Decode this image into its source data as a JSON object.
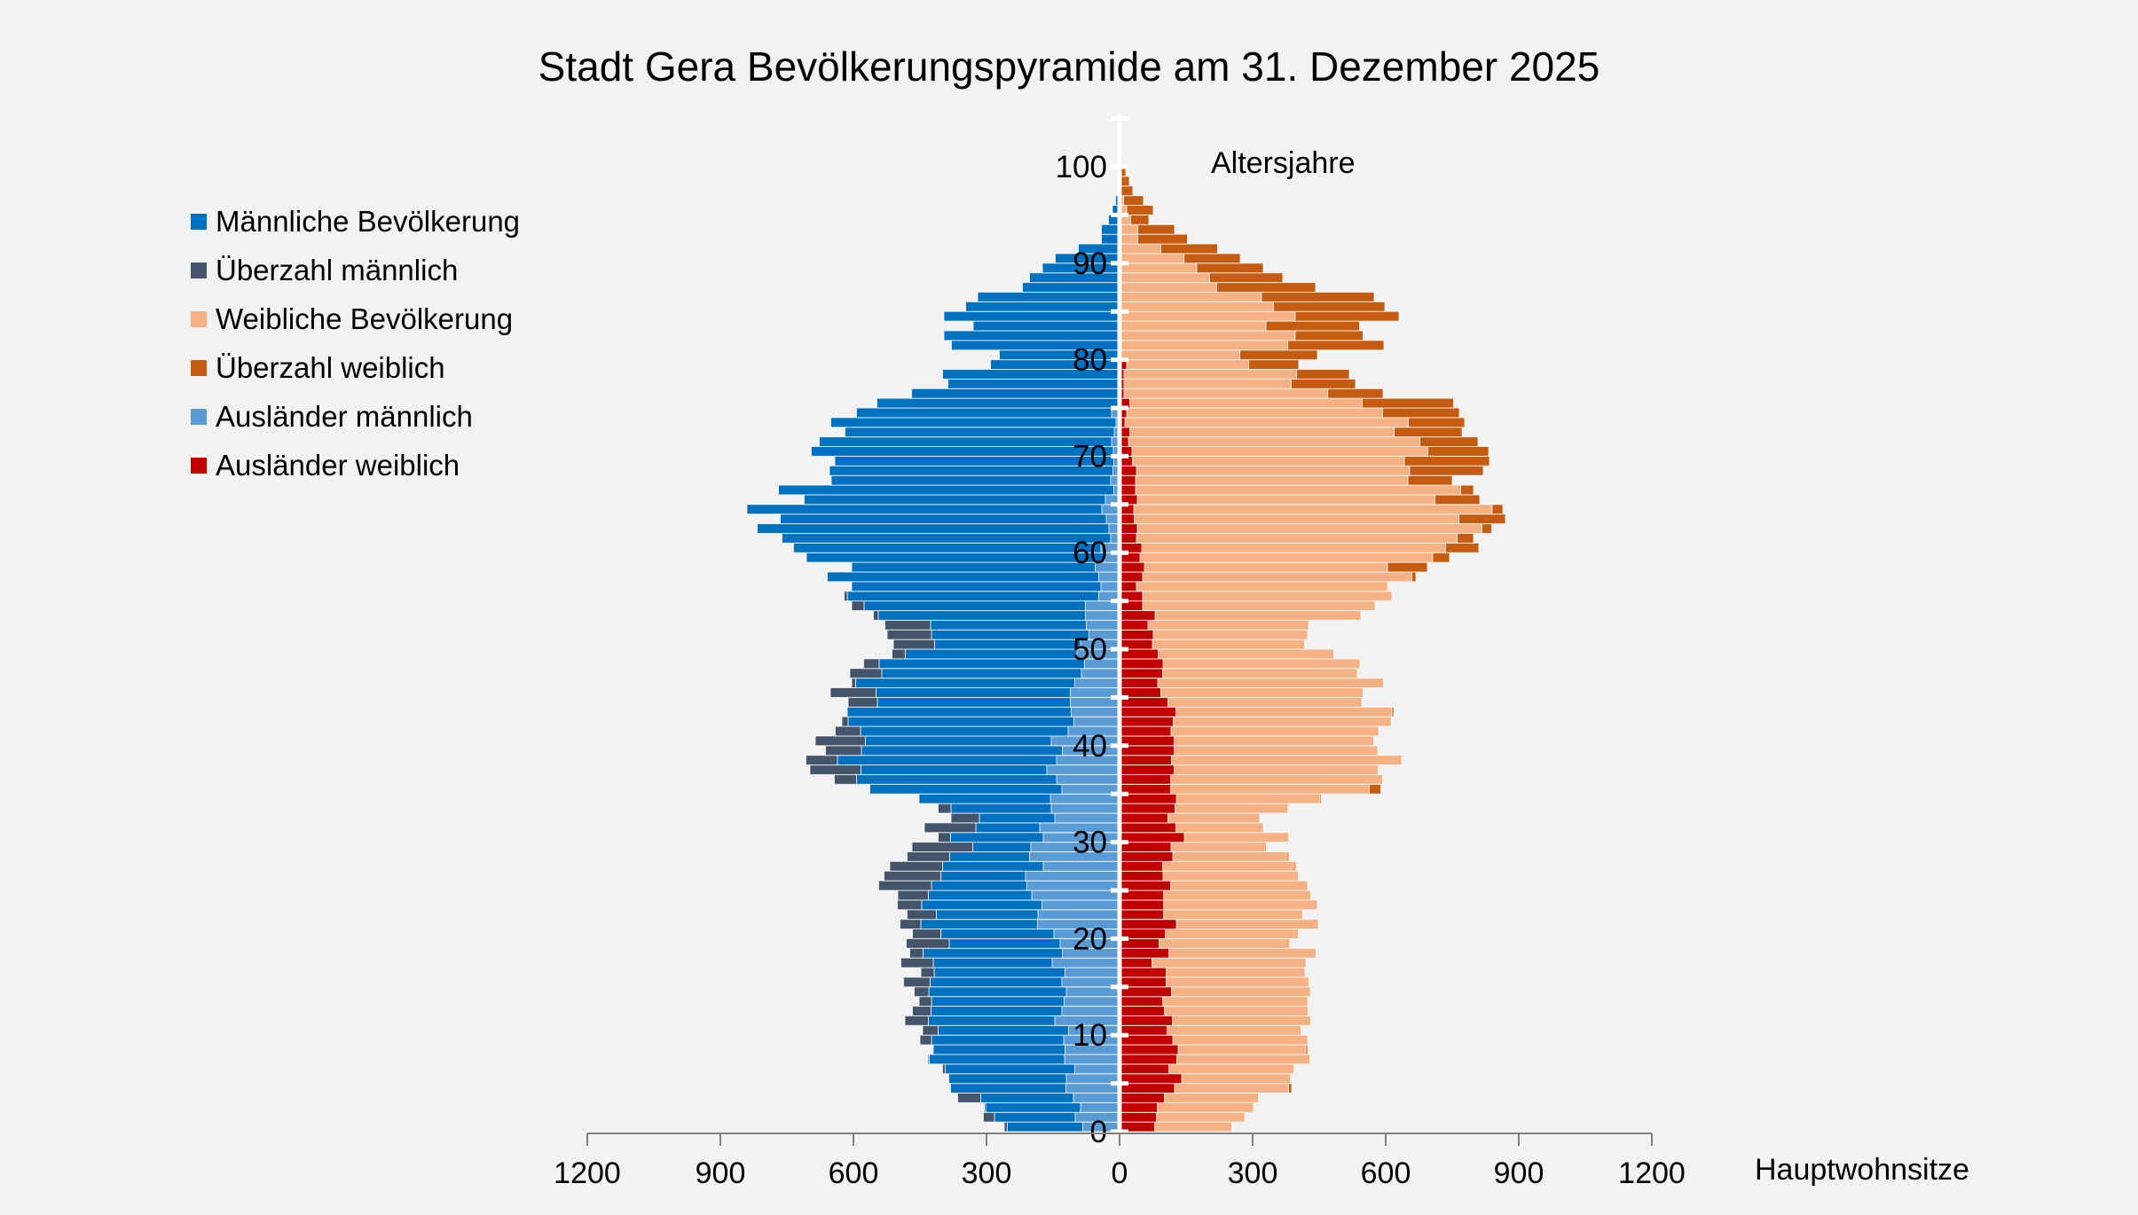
{
  "chart_data": {
    "type": "bar",
    "orientation": "horizontal-pyramid",
    "title": "Stadt Gera Bevölkerungspyramide am 31. Dezember 2025",
    "ylabel": "Altersjahre",
    "xlabel": "Hauptwohnsitze",
    "xlim": [
      -1200,
      1200
    ],
    "ylim": [
      0,
      105
    ],
    "x_tick_labels": [
      "1200",
      "900",
      "600",
      "300",
      "0",
      "300",
      "600",
      "900",
      "1200"
    ],
    "x_tick_values": [
      -1200,
      -900,
      -600,
      -300,
      0,
      300,
      600,
      900,
      1200
    ],
    "y_tick_labels": [
      "0",
      "10",
      "20",
      "30",
      "40",
      "50",
      "60",
      "70",
      "80",
      "90",
      "100"
    ],
    "y_tick_values": [
      0,
      10,
      20,
      30,
      40,
      50,
      60,
      70,
      80,
      90,
      100
    ],
    "legend_position": "top-left",
    "legend": [
      {
        "label": "Männliche Bevölkerung",
        "color": "#0070c0"
      },
      {
        "label": "Überzahl männlich",
        "color": "#44546a"
      },
      {
        "label": "Weibliche Bevölkerung",
        "color": "#f4b183"
      },
      {
        "label": "Überzahl weiblich",
        "color": "#c55a11"
      },
      {
        "label": "Ausländer männlich",
        "color": "#5b9bd5"
      },
      {
        "label": "Ausländer weiblich",
        "color": "#c00000"
      }
    ],
    "ages": [
      0,
      1,
      2,
      3,
      4,
      5,
      6,
      7,
      8,
      9,
      10,
      11,
      12,
      13,
      14,
      15,
      16,
      17,
      18,
      19,
      20,
      21,
      22,
      23,
      24,
      25,
      26,
      27,
      28,
      29,
      30,
      31,
      32,
      33,
      34,
      35,
      36,
      37,
      38,
      39,
      40,
      41,
      42,
      43,
      44,
      45,
      46,
      47,
      48,
      49,
      50,
      51,
      52,
      53,
      54,
      55,
      56,
      57,
      58,
      59,
      60,
      61,
      62,
      63,
      64,
      65,
      66,
      67,
      68,
      69,
      70,
      71,
      72,
      73,
      74,
      75,
      76,
      77,
      78,
      79,
      80,
      81,
      82,
      83,
      84,
      85,
      86,
      87,
      88,
      89,
      90,
      91,
      92,
      93,
      94,
      95,
      96,
      97,
      98,
      99,
      100
    ],
    "series": [
      {
        "name": "Männliche Bevölkerung",
        "values": [
          260,
          307,
          305,
          365,
          381,
          385,
          399,
          432,
          420,
          450,
          444,
          484,
          467,
          452,
          463,
          487,
          448,
          493,
          473,
          481,
          467,
          495,
          479,
          501,
          500,
          543,
          531,
          518,
          479,
          468,
          409,
          440,
          380,
          409,
          452,
          563,
          643,
          698,
          707,
          663,
          686,
          641,
          626,
          614,
          612,
          652,
          604,
          608,
          577,
          513,
          510,
          524,
          529,
          555,
          604,
          621,
          604,
          659,
          604,
          706,
          735,
          761,
          817,
          765,
          840,
          711,
          769,
          650,
          654,
          642,
          695,
          677,
          619,
          651,
          593,
          547,
          469,
          387,
          399,
          291,
          271,
          379,
          396,
          330,
          396,
          347,
          320,
          219,
          203,
          174,
          145,
          93,
          41,
          41,
          25,
          16,
          9,
          3,
          2,
          0,
          0
        ]
      },
      {
        "name": "Weibliche Bevölkerung",
        "values": [
          253,
          282,
          302,
          313,
          388,
          387,
          393,
          429,
          424,
          424,
          409,
          431,
          425,
          424,
          430,
          427,
          418,
          420,
          443,
          384,
          403,
          448,
          413,
          446,
          431,
          424,
          403,
          399,
          383,
          331,
          381,
          324,
          316,
          380,
          455,
          589,
          593,
          583,
          636,
          582,
          573,
          584,
          612,
          618,
          546,
          549,
          595,
          536,
          542,
          483,
          417,
          424,
          426,
          544,
          576,
          614,
          606,
          668,
          694,
          744,
          810,
          798,
          839,
          870,
          864,
          812,
          798,
          750,
          820,
          834,
          832,
          808,
          772,
          778,
          766,
          753,
          594,
          532,
          518,
          404,
          446,
          596,
          549,
          541,
          630,
          598,
          574,
          442,
          368,
          324,
          272,
          221,
          153,
          124,
          66,
          76,
          54,
          30,
          22,
          14,
          6
        ]
      },
      {
        "name": "Ausländer männlich",
        "values": [
          83,
          100,
          88,
          104,
          121,
          120,
          101,
          124,
          123,
          126,
          115,
          146,
          130,
          125,
          120,
          130,
          123,
          152,
          129,
          134,
          148,
          185,
          184,
          175,
          198,
          209,
          212,
          172,
          203,
          200,
          172,
          180,
          146,
          154,
          156,
          130,
          142,
          164,
          142,
          129,
          154,
          116,
          103,
          109,
          111,
          111,
          101,
          86,
          79,
          96,
          88,
          69,
          75,
          77,
          77,
          47,
          42,
          47,
          55,
          34,
          42,
          20,
          24,
          30,
          40,
          32,
          13,
          20,
          15,
          13,
          14,
          18,
          12,
          8,
          18,
          3,
          2,
          2,
          2,
          2,
          2,
          2,
          2,
          2,
          2,
          2,
          2,
          2,
          2,
          2,
          0,
          0,
          0,
          0,
          0,
          0,
          0,
          0,
          0,
          0,
          0
        ]
      },
      {
        "name": "Ausländer weiblich",
        "values": [
          79,
          83,
          85,
          101,
          124,
          140,
          111,
          129,
          132,
          120,
          107,
          119,
          101,
          97,
          117,
          105,
          105,
          73,
          111,
          89,
          103,
          128,
          99,
          99,
          99,
          115,
          98,
          97,
          120,
          116,
          146,
          127,
          109,
          125,
          128,
          115,
          115,
          123,
          117,
          123,
          123,
          116,
          121,
          127,
          109,
          93,
          86,
          97,
          98,
          87,
          74,
          76,
          64,
          80,
          52,
          52,
          38,
          52,
          56,
          46,
          50,
          38,
          40,
          33,
          32,
          40,
          36,
          36,
          38,
          29,
          28,
          20,
          23,
          12,
          16,
          23,
          10,
          10,
          10,
          16,
          3,
          3,
          3,
          3,
          3,
          3,
          3,
          3,
          3,
          3,
          3,
          3,
          3,
          3,
          3,
          2,
          2,
          2,
          2,
          2,
          2
        ]
      }
    ],
    "colors": {
      "background": "#f2f2f2",
      "male": "#0070c0",
      "male_surplus": "#44546a",
      "female": "#f4b183",
      "female_surplus": "#c55a11",
      "foreign_male": "#5b9bd5",
      "foreign_female": "#c00000",
      "axis": "#808080"
    }
  }
}
